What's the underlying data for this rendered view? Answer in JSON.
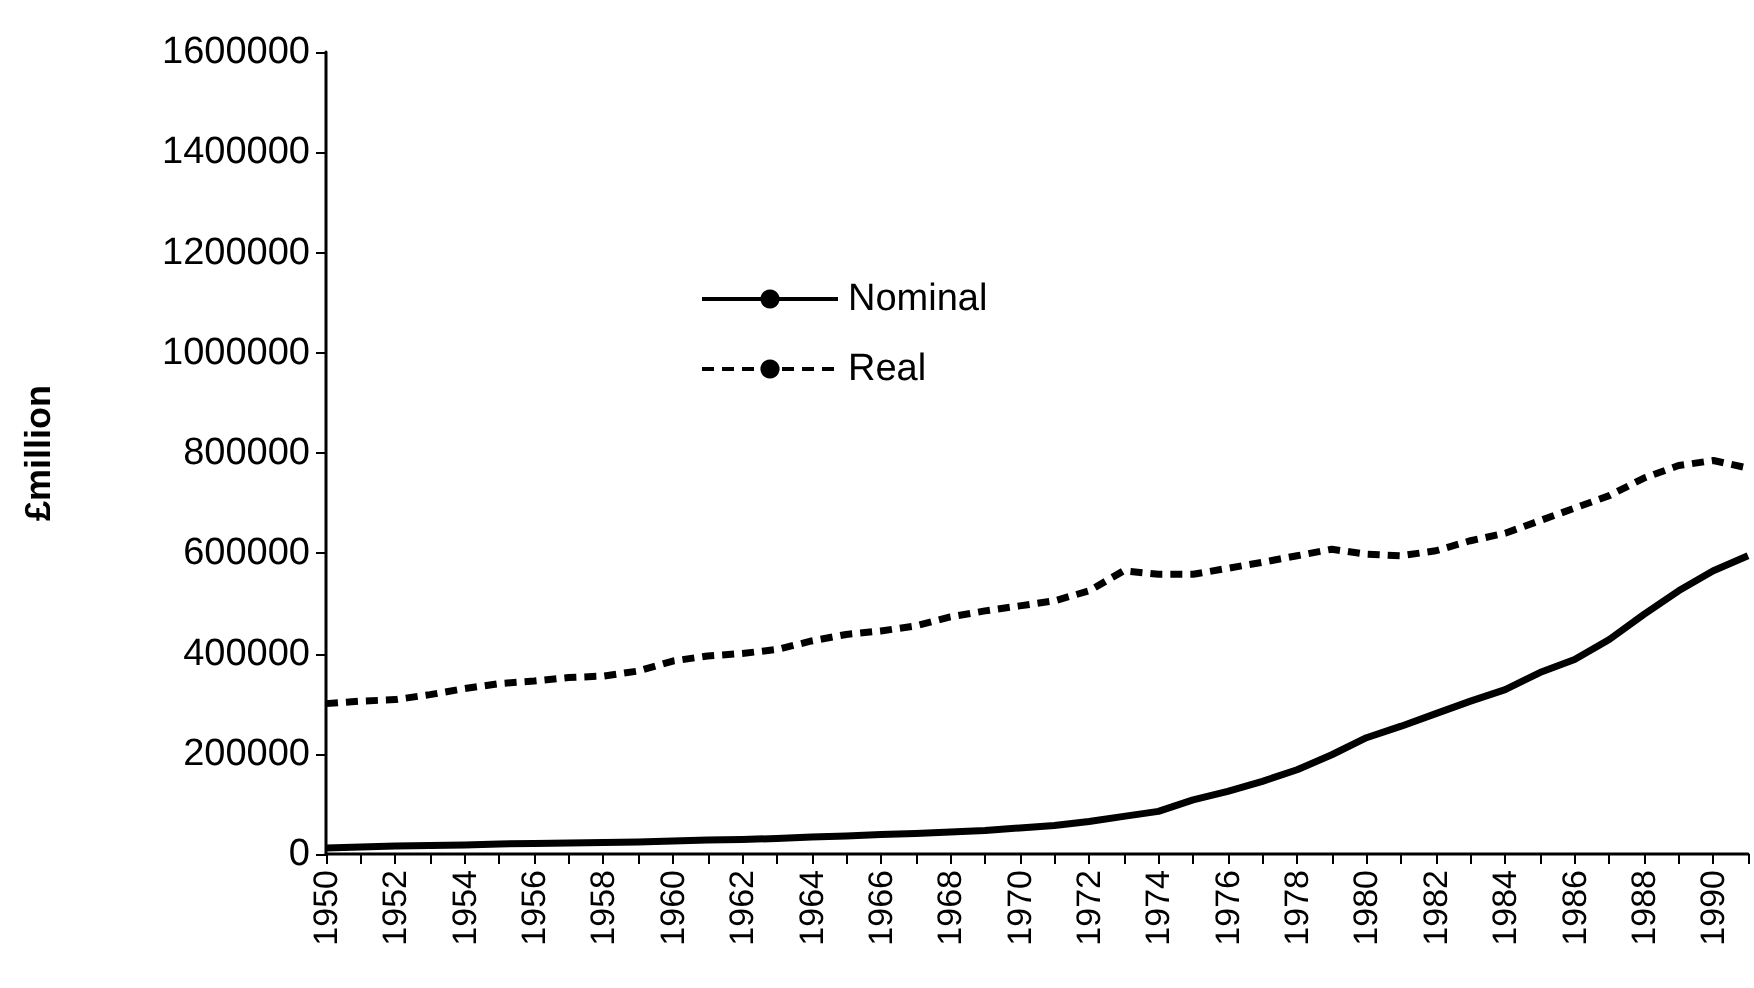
{
  "chart_data": {
    "type": "line",
    "ylabel": "£million",
    "categories": [
      "1950",
      null,
      "1952",
      null,
      "1954",
      null,
      "1956",
      null,
      "1958",
      null,
      "1960",
      null,
      "1962",
      null,
      "1964",
      null,
      "1966",
      null,
      "1968",
      null,
      "1970",
      null,
      "1972",
      null,
      "1974",
      null,
      "1976",
      null,
      "1978",
      null,
      "1980",
      null,
      "1982",
      null,
      "1984",
      null,
      "1986",
      null,
      "1988",
      null,
      "1990",
      null
    ],
    "series": [
      {
        "name": "Nominal",
        "color": "#000000",
        "line_style": "solid",
        "values": [
          12000,
          14000,
          16000,
          17000,
          18000,
          20000,
          21000,
          22000,
          23000,
          24000,
          26000,
          28000,
          29000,
          31000,
          34000,
          36000,
          39000,
          41000,
          44000,
          47000,
          52000,
          57000,
          65000,
          75000,
          85000,
          108000,
          125000,
          145000,
          168000,
          198000,
          232000,
          255000,
          280000,
          305000,
          328000,
          362000,
          388000,
          428000,
          478000,
          525000,
          565000,
          595000
        ]
      },
      {
        "name": "Real",
        "color": "#000000",
        "line_style": "dashed",
        "values": [
          300000,
          305000,
          308000,
          318000,
          330000,
          340000,
          345000,
          352000,
          355000,
          365000,
          385000,
          395000,
          400000,
          408000,
          425000,
          438000,
          445000,
          455000,
          473000,
          485000,
          495000,
          505000,
          525000,
          565000,
          558000,
          558000,
          570000,
          582000,
          595000,
          608000,
          598000,
          595000,
          605000,
          625000,
          640000,
          665000,
          690000,
          715000,
          750000,
          775000,
          785000,
          770000
        ]
      }
    ],
    "ylim": [
      0,
      1600000
    ],
    "yticks": [
      0,
      200000,
      400000,
      600000,
      800000,
      1000000,
      1200000,
      1400000,
      1600000
    ],
    "grid": false,
    "legend": "top left",
    "marker": "none"
  }
}
